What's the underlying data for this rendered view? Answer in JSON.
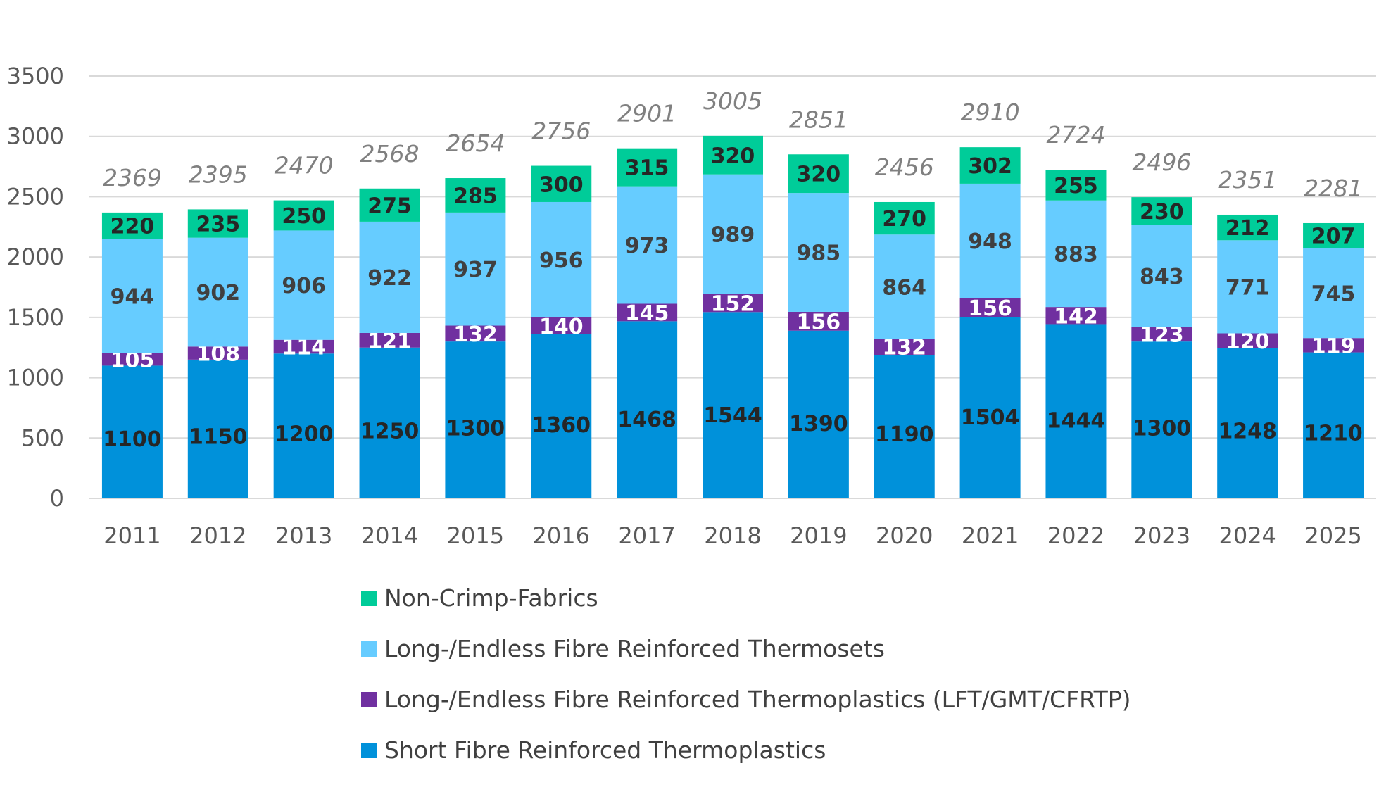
{
  "chart_data": {
    "type": "bar",
    "stacked": true,
    "categories": [
      "2011",
      "2012",
      "2013",
      "2014",
      "2015",
      "2016",
      "2017",
      "2018",
      "2019",
      "2020",
      "2021",
      "2022",
      "2023",
      "2024",
      "2025"
    ],
    "series": [
      {
        "name": "Short Fibre Reinforced Thermoplastics",
        "color": "#0091DA",
        "label_color": "#262626",
        "values": [
          1100,
          1150,
          1200,
          1250,
          1300,
          1360,
          1468,
          1544,
          1390,
          1190,
          1504,
          1444,
          1300,
          1248,
          1210
        ]
      },
      {
        "name": "Long-/Endless Fibre Reinforced Thermoplastics (LFT/GMT/CFRTP)",
        "color": "#7030A0",
        "label_color": "#FFFFFF",
        "values": [
          105,
          108,
          114,
          121,
          132,
          140,
          145,
          152,
          156,
          132,
          156,
          142,
          123,
          120,
          119
        ]
      },
      {
        "name": "Long-/Endless Fibre Reinforced Thermosets",
        "color": "#66CCFF",
        "label_color": "#404040",
        "values": [
          944,
          902,
          906,
          922,
          937,
          956,
          973,
          989,
          985,
          864,
          948,
          883,
          843,
          771,
          745
        ]
      },
      {
        "name": "Non-Crimp-Fabrics",
        "color": "#00CC99",
        "label_color": "#262626",
        "values": [
          220,
          235,
          250,
          275,
          285,
          300,
          315,
          320,
          320,
          270,
          302,
          255,
          230,
          212,
          207
        ]
      }
    ],
    "totals": [
      2369,
      2395,
      2470,
      2568,
      2654,
      2756,
      2901,
      3005,
      2851,
      2456,
      2910,
      2724,
      2496,
      2351,
      2281
    ],
    "ylim": [
      0,
      3500
    ],
    "yticks": [
      "0",
      "500",
      "1000",
      "1500",
      "2000",
      "2500",
      "3000",
      "3500"
    ],
    "legend_order": [
      "Non-Crimp-Fabrics",
      "Long-/Endless Fibre Reinforced Thermosets",
      "Long-/Endless Fibre Reinforced Thermoplastics (LFT/GMT/CFRTP)",
      "Short Fibre Reinforced Thermoplastics"
    ],
    "legend_position": "bottom",
    "grid": true
  }
}
